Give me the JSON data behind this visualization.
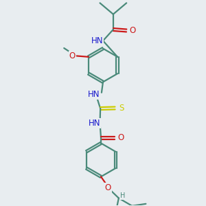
{
  "background_color": "#e8edf0",
  "bond_color": "#4a8a7a",
  "n_color": "#1a1acc",
  "o_color": "#cc1a1a",
  "s_color": "#cccc00",
  "line_width": 1.6,
  "font_size": 8.5,
  "figsize": [
    3.0,
    3.0
  ],
  "dpi": 100,
  "xlim": [
    0,
    10
  ],
  "ylim": [
    0,
    10
  ]
}
